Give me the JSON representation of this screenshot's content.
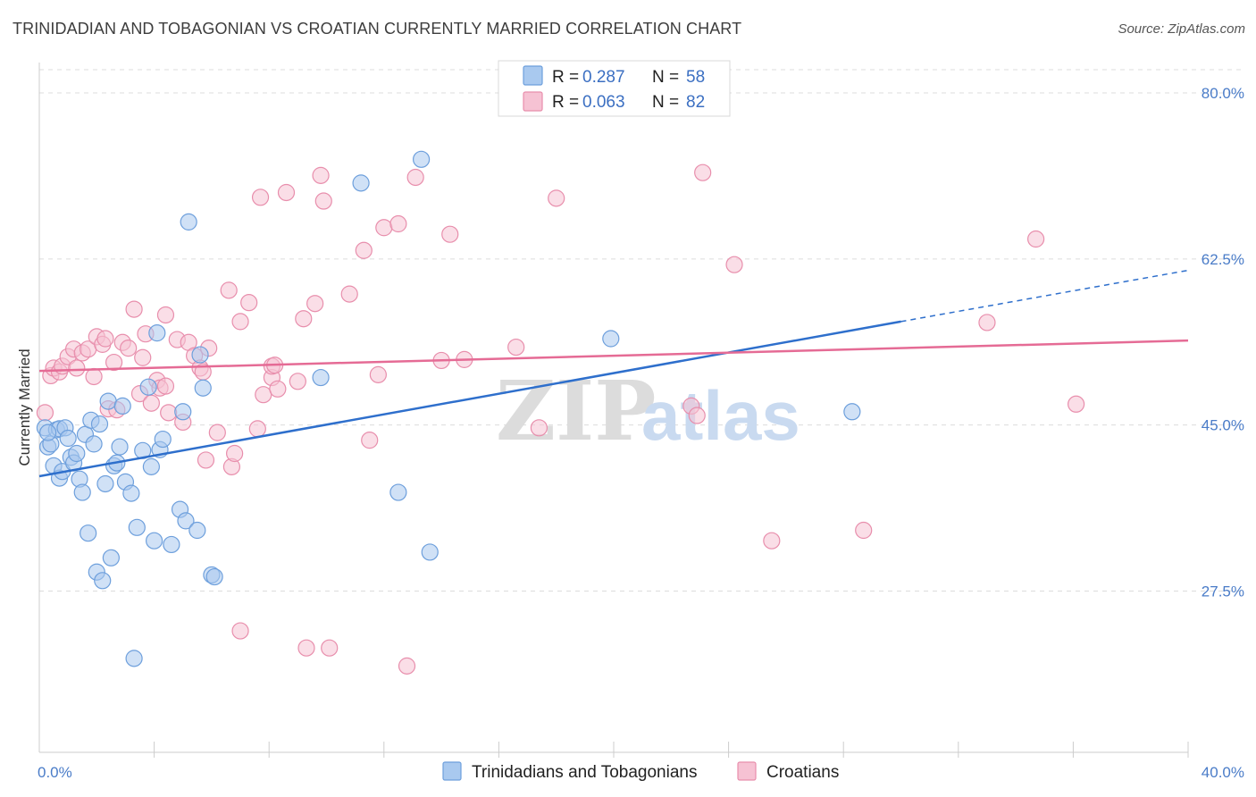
{
  "header": {
    "title": "TRINIDADIAN AND TOBAGONIAN VS CROATIAN CURRENTLY MARRIED CORRELATION CHART",
    "source": "Source: ZipAtlas.com"
  },
  "colors": {
    "blue_fill": "#a9c9ef",
    "blue_stroke": "#6d9fdc",
    "blue_line": "#2e6fcc",
    "pink_fill": "#f6c2d3",
    "pink_stroke": "#e88eac",
    "pink_line": "#e56b95",
    "grid": "#dcdcdc",
    "tick_label": "#4a7cc8"
  },
  "legend": {
    "rows": [
      {
        "r_label": "R =",
        "r_value": "0.287",
        "n_label": "N =",
        "n_value": "58"
      },
      {
        "r_label": "R =",
        "r_value": "0.063",
        "n_label": "N =",
        "n_value": "82"
      }
    ]
  },
  "chart_data": {
    "type": "scatter",
    "title": "TRINIDADIAN AND TOBAGONIAN VS CROATIAN CURRENTLY MARRIED CORRELATION CHART",
    "ylabel": "Currently Married",
    "xlabel": "",
    "xlim": [
      0,
      40
    ],
    "ylim": [
      10.5,
      83.2
    ],
    "x_tick_labels": [
      "0.0%",
      "40.0%"
    ],
    "y_ticks": [
      27.5,
      45.0,
      62.5,
      80.0
    ],
    "y_tick_labels": [
      "27.5%",
      "45.0%",
      "62.5%",
      "80.0%"
    ],
    "grid": "horizontal dashed",
    "legend_position": "top-center",
    "watermark": {
      "zip": "ZIP",
      "atlas": "atlas"
    },
    "series": [
      {
        "name": "Trinidadians and Tobagonians",
        "r": 0.287,
        "n": 58,
        "trend": {
          "x0": 0,
          "y0": 39.6,
          "x1": 30,
          "y1": 55.9,
          "dash_to_x": 40,
          "dash_to_y": 61.3
        },
        "points": [
          [
            0.2,
            44.7
          ],
          [
            0.3,
            42.7
          ],
          [
            0.4,
            43.0
          ],
          [
            0.5,
            40.7
          ],
          [
            0.6,
            44.5
          ],
          [
            0.7,
            39.4
          ],
          [
            0.7,
            44.6
          ],
          [
            0.8,
            40.1
          ],
          [
            0.9,
            44.7
          ],
          [
            1.0,
            43.6
          ],
          [
            1.1,
            41.6
          ],
          [
            1.2,
            41.0
          ],
          [
            1.3,
            42.0
          ],
          [
            1.4,
            39.3
          ],
          [
            1.5,
            37.9
          ],
          [
            1.6,
            44.0
          ],
          [
            1.7,
            33.6
          ],
          [
            1.8,
            45.5
          ],
          [
            1.9,
            43.0
          ],
          [
            2.0,
            29.5
          ],
          [
            2.1,
            45.1
          ],
          [
            2.2,
            28.6
          ],
          [
            2.3,
            38.8
          ],
          [
            2.4,
            47.5
          ],
          [
            2.5,
            31.0
          ],
          [
            2.6,
            40.7
          ],
          [
            2.7,
            41.0
          ],
          [
            2.8,
            42.7
          ],
          [
            2.9,
            47.0
          ],
          [
            3.0,
            39.0
          ],
          [
            3.2,
            37.8
          ],
          [
            3.3,
            20.4
          ],
          [
            3.4,
            34.2
          ],
          [
            3.6,
            42.3
          ],
          [
            3.8,
            49.0
          ],
          [
            3.9,
            40.6
          ],
          [
            4.0,
            32.8
          ],
          [
            4.1,
            54.7
          ],
          [
            4.2,
            42.4
          ],
          [
            4.3,
            43.5
          ],
          [
            4.6,
            32.4
          ],
          [
            4.9,
            36.1
          ],
          [
            5.0,
            46.4
          ],
          [
            5.1,
            34.9
          ],
          [
            5.2,
            66.4
          ],
          [
            5.5,
            33.9
          ],
          [
            5.6,
            52.4
          ],
          [
            5.7,
            48.9
          ],
          [
            6.0,
            29.2
          ],
          [
            6.1,
            29.0
          ],
          [
            9.8,
            50.0
          ],
          [
            11.2,
            70.5
          ],
          [
            12.5,
            37.9
          ],
          [
            13.3,
            73.0
          ],
          [
            13.6,
            31.6
          ],
          [
            19.9,
            54.1
          ],
          [
            28.3,
            46.4
          ],
          [
            0.3,
            44.2
          ]
        ]
      },
      {
        "name": "Croatians",
        "r": 0.063,
        "n": 82,
        "trend": {
          "x0": 0,
          "y0": 50.7,
          "x1": 40,
          "y1": 53.9
        },
        "points": [
          [
            0.2,
            46.3
          ],
          [
            0.4,
            50.2
          ],
          [
            0.5,
            51.0
          ],
          [
            0.7,
            50.6
          ],
          [
            0.8,
            51.2
          ],
          [
            1.0,
            52.2
          ],
          [
            1.2,
            53.0
          ],
          [
            1.3,
            51.0
          ],
          [
            1.5,
            52.6
          ],
          [
            1.7,
            53.0
          ],
          [
            1.9,
            50.1
          ],
          [
            2.0,
            54.3
          ],
          [
            2.2,
            53.5
          ],
          [
            2.4,
            46.7
          ],
          [
            2.6,
            51.6
          ],
          [
            2.7,
            46.6
          ],
          [
            2.9,
            53.7
          ],
          [
            3.1,
            53.1
          ],
          [
            3.3,
            57.2
          ],
          [
            3.5,
            48.3
          ],
          [
            3.6,
            52.1
          ],
          [
            3.7,
            54.6
          ],
          [
            3.9,
            47.3
          ],
          [
            4.1,
            49.7
          ],
          [
            4.2,
            48.9
          ],
          [
            4.4,
            56.6
          ],
          [
            4.5,
            46.3
          ],
          [
            4.8,
            54.0
          ],
          [
            5.0,
            45.3
          ],
          [
            5.2,
            53.7
          ],
          [
            5.4,
            52.3
          ],
          [
            5.6,
            51.0
          ],
          [
            5.7,
            50.6
          ],
          [
            5.8,
            41.3
          ],
          [
            5.9,
            53.1
          ],
          [
            6.2,
            44.2
          ],
          [
            6.6,
            59.2
          ],
          [
            6.7,
            40.6
          ],
          [
            6.8,
            42.0
          ],
          [
            7.0,
            55.9
          ],
          [
            7.3,
            57.9
          ],
          [
            7.6,
            44.6
          ],
          [
            7.7,
            69.0
          ],
          [
            7.8,
            48.2
          ],
          [
            8.1,
            50.0
          ],
          [
            8.1,
            51.2
          ],
          [
            8.3,
            48.8
          ],
          [
            8.6,
            69.5
          ],
          [
            9.0,
            49.6
          ],
          [
            9.2,
            56.2
          ],
          [
            9.3,
            21.5
          ],
          [
            9.6,
            57.8
          ],
          [
            9.8,
            71.3
          ],
          [
            9.9,
            68.6
          ],
          [
            10.1,
            21.5
          ],
          [
            10.8,
            58.8
          ],
          [
            11.3,
            63.4
          ],
          [
            11.5,
            43.4
          ],
          [
            11.8,
            50.3
          ],
          [
            12.0,
            65.8
          ],
          [
            12.5,
            66.2
          ],
          [
            12.8,
            19.6
          ],
          [
            13.1,
            71.1
          ],
          [
            14.0,
            51.8
          ],
          [
            14.3,
            65.1
          ],
          [
            14.8,
            51.9
          ],
          [
            16.6,
            53.2
          ],
          [
            17.4,
            44.7
          ],
          [
            18.0,
            68.9
          ],
          [
            22.7,
            47.0
          ],
          [
            22.9,
            46.0
          ],
          [
            23.1,
            71.6
          ],
          [
            24.2,
            61.9
          ],
          [
            25.5,
            32.8
          ],
          [
            28.7,
            33.9
          ],
          [
            33.0,
            55.8
          ],
          [
            34.7,
            64.6
          ],
          [
            36.1,
            47.2
          ],
          [
            7.0,
            23.3
          ],
          [
            4.4,
            49.1
          ],
          [
            2.3,
            54.1
          ],
          [
            8.2,
            51.3
          ]
        ]
      }
    ]
  }
}
